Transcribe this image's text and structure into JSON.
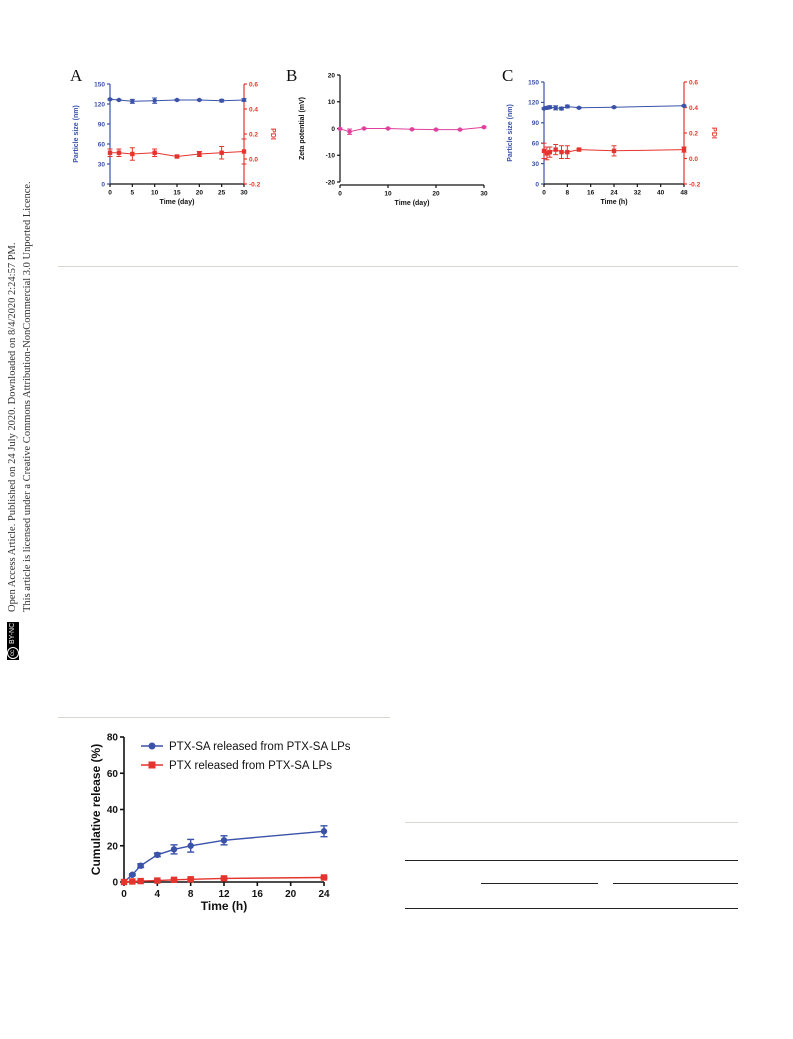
{
  "sidebar": {
    "line1": "Open Access Article. Published on 24 July 2020. Downloaded on 8/4/2020 2:24:57 PM.",
    "line2": "This article is licensed under a Creative Commons Attribution-NonCommercial 3.0 Unported Licence.",
    "badge": "BY-NC",
    "badge_icon": "cc"
  },
  "colors": {
    "blue": "#3a52a8",
    "red": "#e5342d",
    "pink": "#e0409c",
    "axis": "#111111"
  },
  "chart_data": [
    {
      "type": "line",
      "panel": "A",
      "xlabel": "Time (day)",
      "ylabel": "Particle size (nm)",
      "y2label": "PDI",
      "xlim": [
        0,
        30
      ],
      "xticks": [
        0,
        5,
        10,
        15,
        20,
        25,
        30
      ],
      "ylim": [
        0,
        150
      ],
      "yticks": [
        0,
        30,
        60,
        90,
        120,
        150
      ],
      "y2lim": [
        -0.2,
        0.6
      ],
      "y2ticks": [
        "-0.2",
        "0.0",
        "0.2",
        "0.4",
        "0.6"
      ],
      "series": [
        {
          "axis": "left",
          "color": "#3a52a8",
          "marker": "circle",
          "x": [
            0,
            2,
            5,
            10,
            15,
            20,
            25,
            30
          ],
          "values": [
            127,
            126,
            124,
            125,
            126,
            126,
            125,
            126
          ],
          "err": [
            1,
            1,
            3,
            4,
            1,
            1,
            2,
            2
          ]
        },
        {
          "axis": "right",
          "color": "#e5342d",
          "marker": "square",
          "x": [
            0,
            2,
            5,
            10,
            15,
            20,
            25,
            30
          ],
          "values": [
            0.05,
            0.05,
            0.04,
            0.05,
            0.02,
            0.04,
            0.05,
            0.06
          ],
          "err": [
            0.03,
            0.03,
            0.05,
            0.03,
            0.01,
            0.02,
            0.05,
            0.1
          ]
        }
      ]
    },
    {
      "type": "line",
      "panel": "B",
      "xlabel": "Time (day)",
      "ylabel": "Zeta potential (mV)",
      "xlim": [
        0,
        30
      ],
      "xticks": [
        0,
        10,
        20,
        30
      ],
      "ylim": [
        -20,
        20
      ],
      "yticks": [
        -20,
        -10,
        0,
        10,
        20
      ],
      "series": [
        {
          "axis": "left",
          "color": "#e0409c",
          "marker": "circle",
          "x": [
            0,
            2,
            5,
            10,
            15,
            20,
            25,
            30
          ],
          "values": [
            -0.1,
            -1.2,
            0.0,
            0.0,
            -0.3,
            -0.4,
            -0.4,
            0.5
          ],
          "err": [
            0.2,
            1.0,
            0.2,
            0.2,
            0.2,
            0.2,
            0.2,
            0.3
          ]
        }
      ]
    },
    {
      "type": "line",
      "panel": "C",
      "xlabel": "Time (h)",
      "ylabel": "Particle size (nm)",
      "y2label": "PDI",
      "xlim": [
        0,
        48
      ],
      "xticks": [
        0,
        8,
        16,
        24,
        32,
        40,
        48
      ],
      "ylim": [
        0,
        150
      ],
      "yticks": [
        0,
        30,
        60,
        90,
        120,
        150
      ],
      "y2lim": [
        -0.2,
        0.6
      ],
      "y2ticks": [
        "-0.2",
        "0.0",
        "0.2",
        "0.4",
        "0.6"
      ],
      "series": [
        {
          "axis": "left",
          "color": "#3a52a8",
          "marker": "circle",
          "x": [
            0,
            1,
            2,
            4,
            6,
            8,
            12,
            24,
            48
          ],
          "values": [
            111,
            112,
            113,
            112,
            111,
            114,
            112,
            113,
            115
          ],
          "err": [
            1,
            2,
            2,
            3,
            2,
            2,
            1,
            1,
            1
          ]
        },
        {
          "axis": "right",
          "color": "#e5342d",
          "marker": "square",
          "x": [
            0,
            1,
            2,
            4,
            6,
            8,
            12,
            24,
            48
          ],
          "values": [
            0.06,
            0.04,
            0.05,
            0.07,
            0.05,
            0.05,
            0.07,
            0.06,
            0.07
          ],
          "err": [
            0.06,
            0.05,
            0.04,
            0.04,
            0.05,
            0.05,
            0.01,
            0.04,
            0.02
          ]
        }
      ]
    },
    {
      "type": "line",
      "panel": "release",
      "xlabel": "Time (h)",
      "ylabel": "Cumulative release (%)",
      "xlim": [
        0,
        24
      ],
      "xticks": [
        0,
        4,
        8,
        12,
        16,
        20,
        24
      ],
      "ylim": [
        0,
        80
      ],
      "yticks": [
        0,
        20,
        40,
        60,
        80
      ],
      "legend": "top-right",
      "series": [
        {
          "name": "PTX-SA released from PTX-SA LPs",
          "color": "#3a52a8",
          "marker": "circle",
          "x": [
            0,
            1,
            2,
            4,
            6,
            8,
            12,
            24
          ],
          "values": [
            0,
            4,
            9,
            15,
            18,
            20,
            23,
            28
          ],
          "err": [
            0,
            0.5,
            1,
            1,
            2.5,
            3.5,
            2.5,
            3
          ]
        },
        {
          "name": "PTX released from PTX-SA LPs",
          "color": "#e5342d",
          "marker": "square",
          "x": [
            0,
            1,
            2,
            4,
            6,
            8,
            12,
            24
          ],
          "values": [
            0,
            0.3,
            0.5,
            0.8,
            1.2,
            1.5,
            2,
            2.5
          ],
          "err": [
            0,
            0.2,
            0.2,
            0.3,
            0.3,
            0.3,
            0.5,
            0.5
          ]
        }
      ]
    }
  ]
}
